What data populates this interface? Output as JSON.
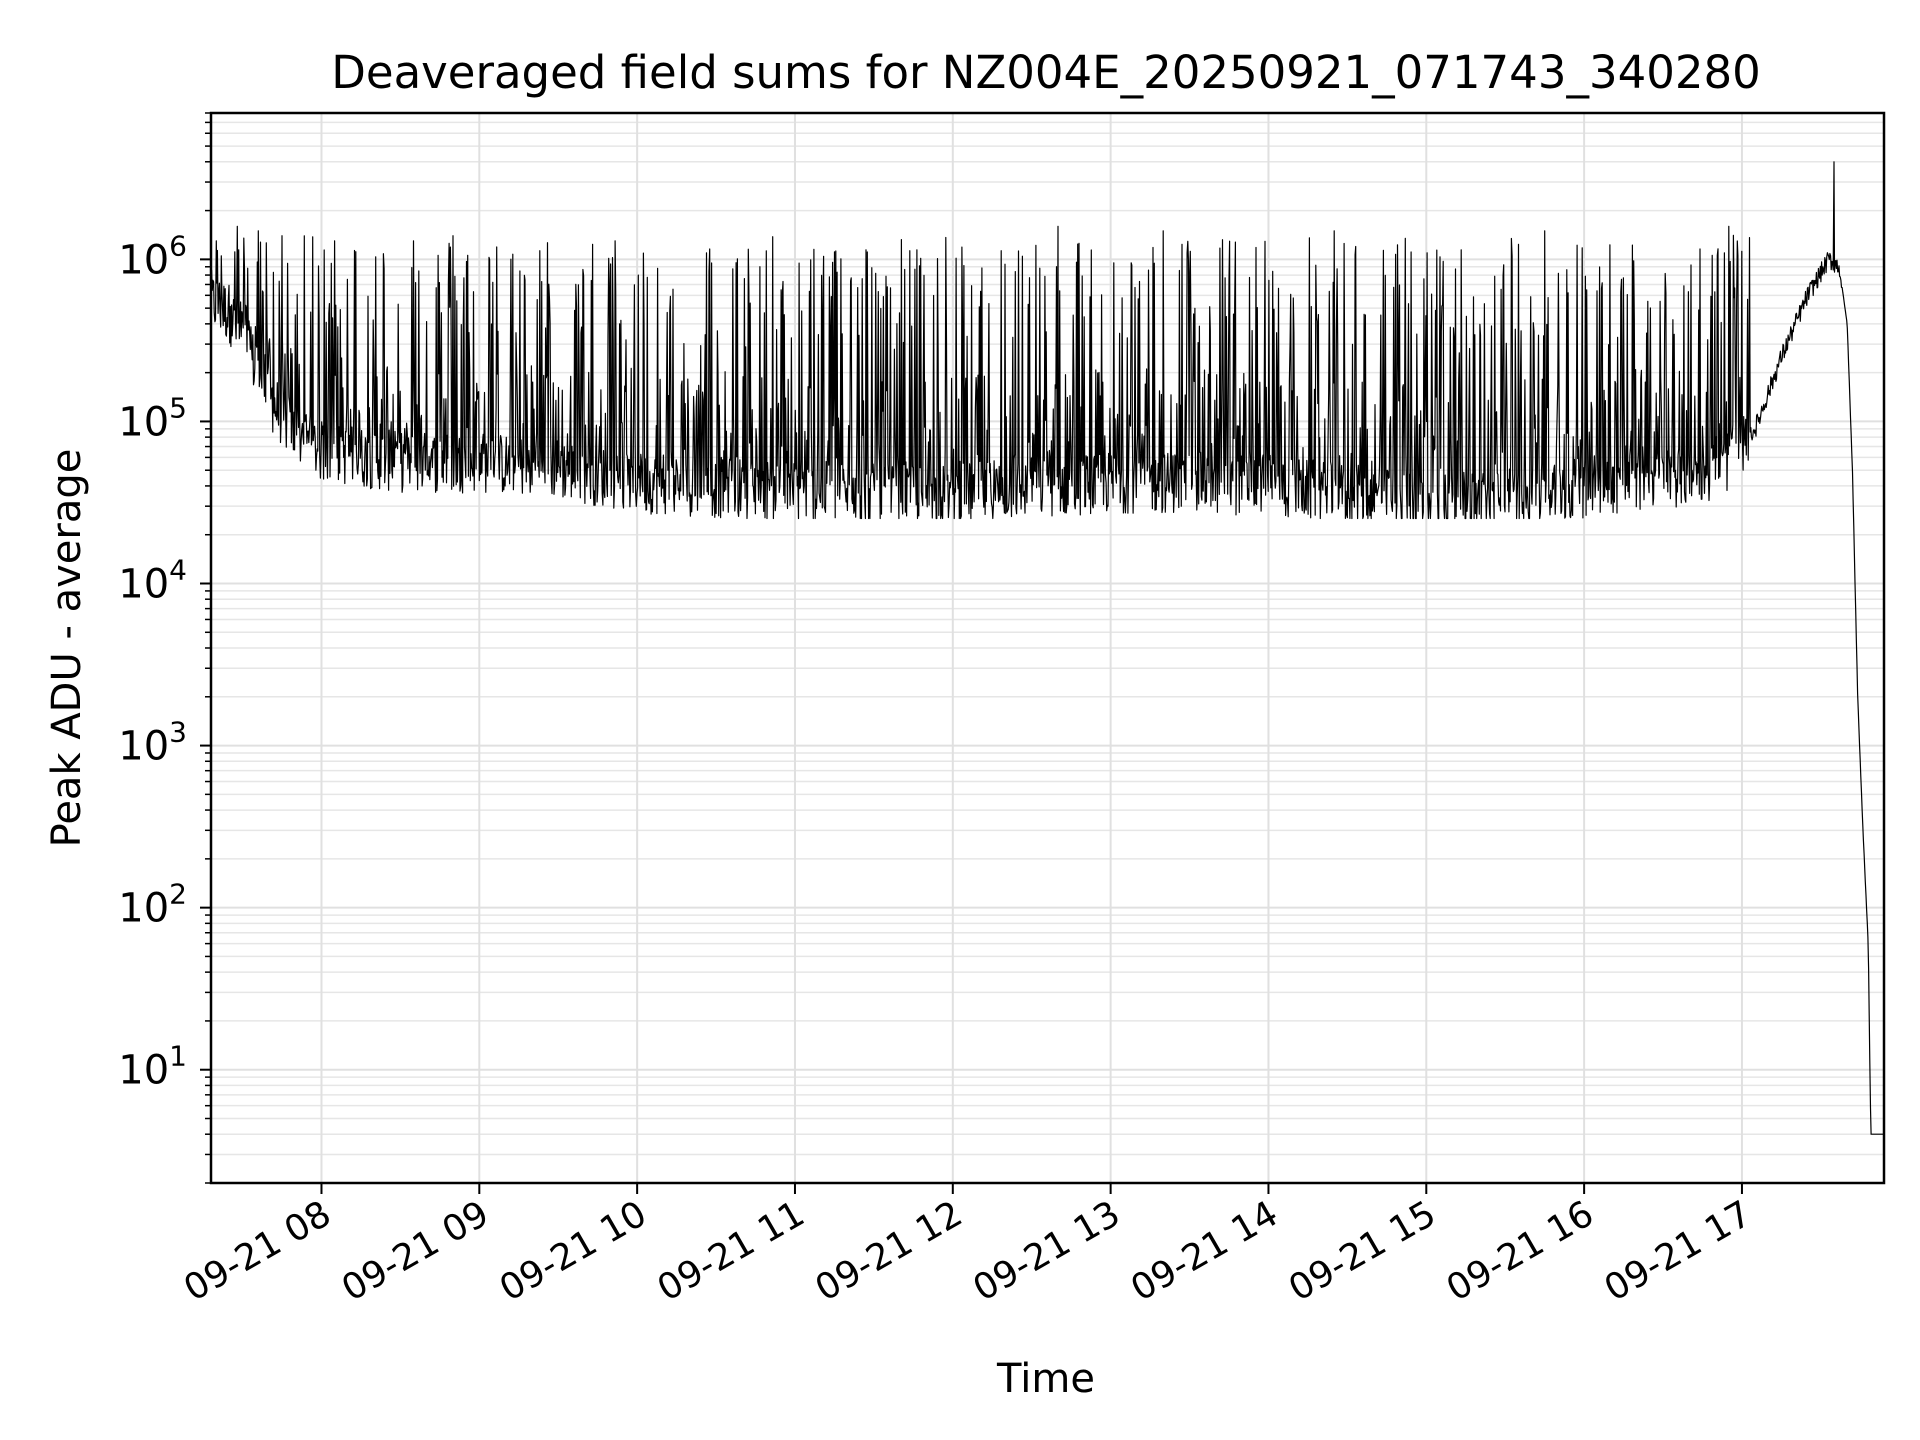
{
  "chart_data": {
    "type": "line",
    "title": "Deaveraged field sums for NZ004E_20250921_071743_340280",
    "xlabel": "Time",
    "ylabel": "Peak ADU - average",
    "yscale": "log",
    "ylim": [
      2,
      8000000
    ],
    "xlim": [
      "2025-09-21 07:18",
      "2025-09-21 17:54"
    ],
    "grid": true,
    "line_color": "#000000",
    "x_ticks": [
      {
        "t": "2025-09-21 08:00",
        "label": "09-21 08"
      },
      {
        "t": "2025-09-21 09:00",
        "label": "09-21 09"
      },
      {
        "t": "2025-09-21 10:00",
        "label": "09-21 10"
      },
      {
        "t": "2025-09-21 11:00",
        "label": "09-21 11"
      },
      {
        "t": "2025-09-21 12:00",
        "label": "09-21 12"
      },
      {
        "t": "2025-09-21 13:00",
        "label": "09-21 13"
      },
      {
        "t": "2025-09-21 14:00",
        "label": "09-21 14"
      },
      {
        "t": "2025-09-21 15:00",
        "label": "09-21 15"
      },
      {
        "t": "2025-09-21 16:00",
        "label": "09-21 16"
      },
      {
        "t": "2025-09-21 17:00",
        "label": "09-21 17"
      }
    ],
    "y_ticks": [
      {
        "value": 10,
        "base": "10",
        "exp": "1"
      },
      {
        "value": 100,
        "base": "10",
        "exp": "2"
      },
      {
        "value": 1000,
        "base": "10",
        "exp": "3"
      },
      {
        "value": 10000,
        "base": "10",
        "exp": "4"
      },
      {
        "value": 100000,
        "base": "10",
        "exp": "5"
      },
      {
        "value": 1000000,
        "base": "10",
        "exp": "6"
      }
    ],
    "series": [
      {
        "baseline": [
          {
            "t": "2025-09-21 07:18",
            "y": 600000
          },
          {
            "t": "2025-09-21 07:25",
            "y": 500000
          },
          {
            "t": "2025-09-21 07:32",
            "y": 300000
          },
          {
            "t": "2025-09-21 07:40",
            "y": 150000
          },
          {
            "t": "2025-09-21 07:50",
            "y": 90000
          },
          {
            "t": "2025-09-21 08:00",
            "y": 70000
          },
          {
            "t": "2025-09-21 08:30",
            "y": 60000
          },
          {
            "t": "2025-09-21 09:00",
            "y": 60000
          },
          {
            "t": "2025-09-21 09:30",
            "y": 55000
          },
          {
            "t": "2025-09-21 10:00",
            "y": 45000
          },
          {
            "t": "2025-09-21 10:30",
            "y": 42000
          },
          {
            "t": "2025-09-21 11:00",
            "y": 40000
          },
          {
            "t": "2025-09-21 11:30",
            "y": 38000
          },
          {
            "t": "2025-09-21 12:00",
            "y": 38000
          },
          {
            "t": "2025-09-21 12:30",
            "y": 42000
          },
          {
            "t": "2025-09-21 13:00",
            "y": 45000
          },
          {
            "t": "2025-09-21 13:30",
            "y": 45000
          },
          {
            "t": "2025-09-21 14:00",
            "y": 43000
          },
          {
            "t": "2025-09-21 14:30",
            "y": 38000
          },
          {
            "t": "2025-09-21 15:00",
            "y": 33000
          },
          {
            "t": "2025-09-21 15:30",
            "y": 35000
          },
          {
            "t": "2025-09-21 16:00",
            "y": 42000
          },
          {
            "t": "2025-09-21 16:30",
            "y": 48000
          },
          {
            "t": "2025-09-21 16:50",
            "y": 52000
          },
          {
            "t": "2025-09-21 17:05",
            "y": 90000
          },
          {
            "t": "2025-09-21 17:15",
            "y": 250000
          },
          {
            "t": "2025-09-21 17:25",
            "y": 600000
          },
          {
            "t": "2025-09-21 17:33",
            "y": 1000000
          },
          {
            "t": "2025-09-21 17:37",
            "y": 900000
          },
          {
            "t": "2025-09-21 17:40",
            "y": 400000
          },
          {
            "t": "2025-09-21 17:42",
            "y": 50000
          },
          {
            "t": "2025-09-21 17:44",
            "y": 2000
          },
          {
            "t": "2025-09-21 17:46",
            "y": 300
          },
          {
            "t": "2025-09-21 17:48",
            "y": 60
          },
          {
            "t": "2025-09-21 17:49",
            "y": 4
          },
          {
            "t": "2025-09-21 17:54",
            "y": 4
          }
        ],
        "spikes": [
          {
            "t": "2025-09-21 07:20",
            "y": 1300000
          },
          {
            "t": "2025-09-21 07:28",
            "y": 1600000
          },
          {
            "t": "2025-09-21 07:36",
            "y": 1500000
          },
          {
            "t": "2025-09-21 07:45",
            "y": 1400000
          },
          {
            "t": "2025-09-21 08:05",
            "y": 1300000
          },
          {
            "t": "2025-09-21 08:35",
            "y": 1300000
          },
          {
            "t": "2025-09-21 08:50",
            "y": 1400000
          },
          {
            "t": "2025-09-21 12:40",
            "y": 1600000
          },
          {
            "t": "2025-09-21 13:20",
            "y": 1500000
          },
          {
            "t": "2025-09-21 14:25",
            "y": 1500000
          },
          {
            "t": "2025-09-21 15:45",
            "y": 1500000
          },
          {
            "t": "2025-09-21 16:55",
            "y": 1600000
          },
          {
            "t": "2025-09-21 17:35",
            "y": 4000000
          }
        ],
        "range_low": 20000
      }
    ]
  }
}
